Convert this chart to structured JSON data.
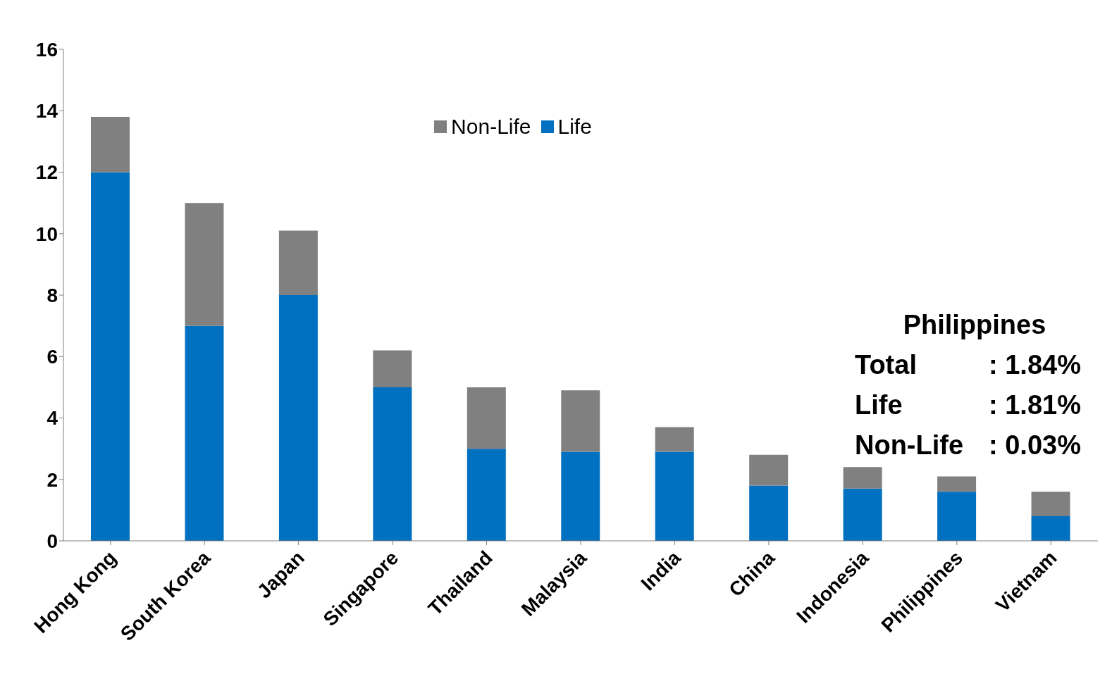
{
  "chart_data": {
    "type": "bar",
    "stacked": true,
    "categories": [
      "Hong Kong",
      "South Korea",
      "Japan",
      "Singapore",
      "Thailand",
      "Malaysia",
      "India",
      "China",
      "Indonesia",
      "Philippines",
      "Vietnam"
    ],
    "series": [
      {
        "name": "Life",
        "color": "#0070c0",
        "values": [
          12.0,
          7.0,
          8.0,
          5.0,
          3.0,
          2.9,
          2.9,
          1.8,
          1.7,
          1.6,
          0.8
        ]
      },
      {
        "name": "Non-Life",
        "color": "#808080",
        "values": [
          1.8,
          4.0,
          2.1,
          1.2,
          2.0,
          2.0,
          0.8,
          1.0,
          0.7,
          0.5,
          0.8
        ]
      }
    ],
    "ylim": [
      0,
      16
    ],
    "yticks": [
      0,
      2,
      4,
      6,
      8,
      10,
      12,
      14,
      16
    ],
    "grid": false,
    "legend": "top",
    "annotations": [
      "Philippines",
      "Total : 1.84%",
      "Life : 1.81%",
      "Non-Life : 0.03%"
    ]
  }
}
